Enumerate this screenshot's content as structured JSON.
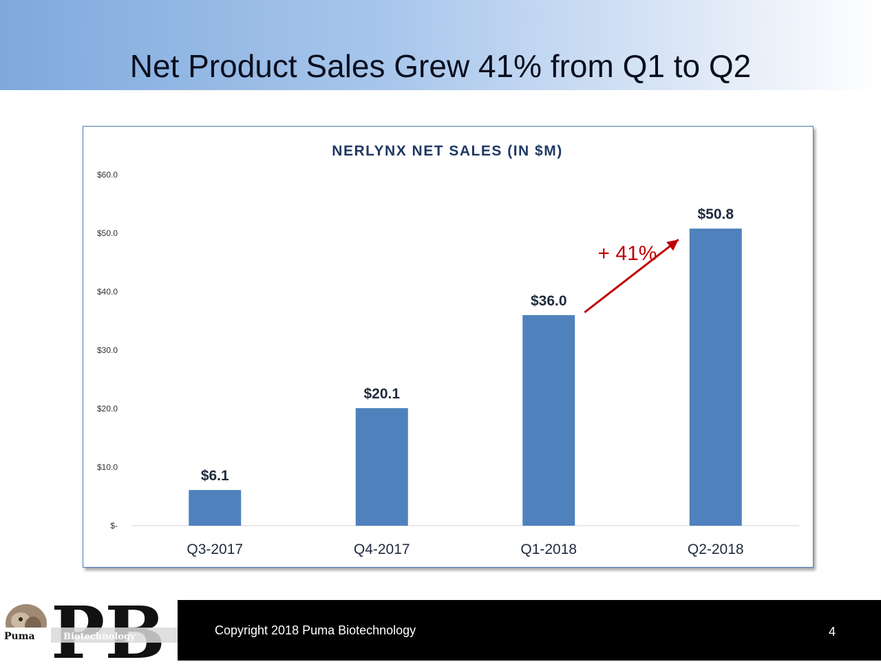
{
  "slide": {
    "title": "Net Product Sales Grew 41% from Q1 to Q2"
  },
  "footer": {
    "copyright": "Copyright 2018 Puma Biotechnology",
    "page_number": "4",
    "logo_text_left": "Puma",
    "logo_text_right": "Biotechnology",
    "logo_letters": "PB"
  },
  "colors": {
    "bar": "#4f81bd",
    "growth_annotation": "#c00000",
    "title_text": "#1f3864"
  },
  "chart_data": {
    "type": "bar",
    "title": "NERLYNX NET SALES (IN $M)",
    "xlabel": "",
    "ylabel": "",
    "categories": [
      "Q3-2017",
      "Q4-2017",
      "Q1-2018",
      "Q2-2018"
    ],
    "values": [
      6.1,
      20.1,
      36.0,
      50.8
    ],
    "data_labels": [
      "$6.1",
      "$20.1",
      "$36.0",
      "$50.8"
    ],
    "ylim": [
      0,
      60
    ],
    "y_ticks": [
      0,
      10,
      20,
      30,
      40,
      50,
      60
    ],
    "y_tick_labels": [
      "$-",
      "$10.0",
      "$20.0",
      "$30.0",
      "$40.0",
      "$50.0",
      "$60.0"
    ],
    "grid": false,
    "legend": "none",
    "annotation": {
      "text": "+ 41%",
      "from_category": "Q1-2018",
      "to_category": "Q2-2018"
    }
  }
}
